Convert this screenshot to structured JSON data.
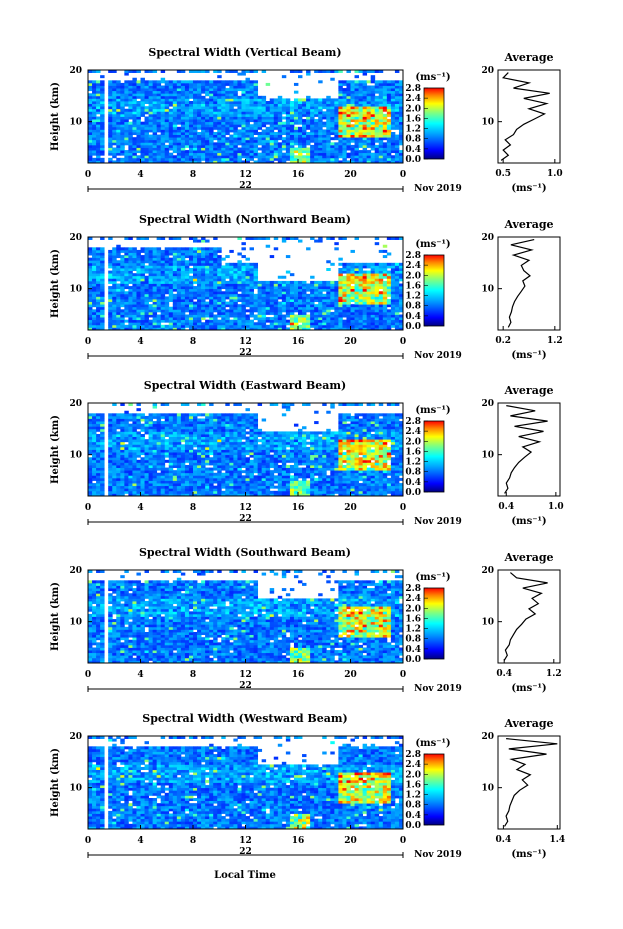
{
  "chart_data": [
    {
      "type": "heatmap",
      "title": "Spectral Width (Vertical Beam)",
      "ylabel": "Height (km)",
      "x_ticks": [
        "0",
        "4",
        "8",
        "12",
        "16",
        "20",
        "0"
      ],
      "y_ticks": [
        "20",
        "10"
      ],
      "date_label": "22",
      "month_label": "Nov 2019",
      "colorbar": {
        "unit": "(ms⁻¹)",
        "ticks": [
          "2.8",
          "2.4",
          "2.0",
          "1.6",
          "1.2",
          "0.8",
          "0.4",
          "0.0"
        ],
        "range": [
          0,
          2.8
        ]
      },
      "xlim": [
        0,
        24
      ],
      "ylim": [
        2,
        20
      ],
      "profile": {
        "title": "Average",
        "xlabel": "(ms⁻¹)",
        "x_ticks": [
          "0.5",
          "1.0"
        ],
        "xlim": [
          0.45,
          1.05
        ],
        "points": [
          [
            0.48,
            2.5
          ],
          [
            0.55,
            3.5
          ],
          [
            0.5,
            4.5
          ],
          [
            0.57,
            5.5
          ],
          [
            0.52,
            6.5
          ],
          [
            0.6,
            7.5
          ],
          [
            0.63,
            8.5
          ],
          [
            0.7,
            9.5
          ],
          [
            0.8,
            10.5
          ],
          [
            0.9,
            11.5
          ],
          [
            0.75,
            12.5
          ],
          [
            0.92,
            13.5
          ],
          [
            0.7,
            14.5
          ],
          [
            0.95,
            15.5
          ],
          [
            0.6,
            16.5
          ],
          [
            0.75,
            17.5
          ],
          [
            0.5,
            18.5
          ],
          [
            0.55,
            19.5
          ]
        ]
      }
    },
    {
      "type": "heatmap",
      "title": "Spectral Width (Northward Beam)",
      "ylabel": "Height (km)",
      "x_ticks": [
        "0",
        "4",
        "8",
        "12",
        "16",
        "20",
        "0"
      ],
      "y_ticks": [
        "20",
        "10"
      ],
      "date_label": "22",
      "month_label": "Nov 2019",
      "colorbar": {
        "unit": "(ms⁻¹)",
        "ticks": [
          "2.8",
          "2.4",
          "2.0",
          "1.6",
          "1.2",
          "0.8",
          "0.4",
          "0.0"
        ],
        "range": [
          0,
          2.8
        ]
      },
      "xlim": [
        0,
        24
      ],
      "ylim": [
        2,
        20
      ],
      "profile": {
        "title": "Average",
        "xlabel": "(ms⁻¹)",
        "x_ticks": [
          "0.2",
          "1.2"
        ],
        "xlim": [
          0.1,
          1.3
        ],
        "points": [
          [
            0.3,
            2.5
          ],
          [
            0.35,
            3.5
          ],
          [
            0.32,
            4.5
          ],
          [
            0.36,
            5.5
          ],
          [
            0.38,
            6.5
          ],
          [
            0.42,
            7.5
          ],
          [
            0.48,
            8.5
          ],
          [
            0.55,
            9.5
          ],
          [
            0.62,
            10.5
          ],
          [
            0.58,
            11.5
          ],
          [
            0.72,
            12.5
          ],
          [
            0.6,
            13.5
          ],
          [
            0.55,
            14.5
          ],
          [
            0.7,
            15.5
          ],
          [
            0.4,
            16.5
          ],
          [
            0.75,
            17.5
          ],
          [
            0.35,
            18.5
          ],
          [
            0.8,
            19.5
          ]
        ]
      }
    },
    {
      "type": "heatmap",
      "title": "Spectral Width (Eastward Beam)",
      "ylabel": "Height (km)",
      "x_ticks": [
        "0",
        "4",
        "8",
        "12",
        "16",
        "20",
        "0"
      ],
      "y_ticks": [
        "20",
        "10"
      ],
      "date_label": "22",
      "month_label": "Nov 2019",
      "colorbar": {
        "unit": "(ms⁻¹)",
        "ticks": [
          "2.8",
          "2.4",
          "2.0",
          "1.6",
          "1.2",
          "0.8",
          "0.4",
          "0.0"
        ],
        "range": [
          0,
          2.8
        ]
      },
      "xlim": [
        0,
        24
      ],
      "ylim": [
        2,
        20
      ],
      "profile": {
        "title": "Average",
        "xlabel": "(ms⁻¹)",
        "x_ticks": [
          "0.4",
          "1.0"
        ],
        "xlim": [
          0.3,
          1.05
        ],
        "points": [
          [
            0.38,
            2.5
          ],
          [
            0.42,
            3.5
          ],
          [
            0.4,
            4.5
          ],
          [
            0.44,
            5.5
          ],
          [
            0.46,
            6.5
          ],
          [
            0.5,
            7.5
          ],
          [
            0.55,
            8.5
          ],
          [
            0.62,
            9.5
          ],
          [
            0.7,
            10.5
          ],
          [
            0.6,
            11.5
          ],
          [
            0.8,
            12.5
          ],
          [
            0.55,
            13.5
          ],
          [
            0.85,
            14.5
          ],
          [
            0.5,
            15.5
          ],
          [
            0.9,
            16.5
          ],
          [
            0.45,
            17.5
          ],
          [
            0.75,
            18.5
          ],
          [
            0.4,
            19.5
          ]
        ]
      }
    },
    {
      "type": "heatmap",
      "title": "Spectral Width (Southward Beam)",
      "ylabel": "Height (km)",
      "x_ticks": [
        "0",
        "4",
        "8",
        "12",
        "16",
        "20",
        "0"
      ],
      "y_ticks": [
        "20",
        "10"
      ],
      "date_label": "22",
      "month_label": "Nov 2019",
      "colorbar": {
        "unit": "(ms⁻¹)",
        "ticks": [
          "2.8",
          "2.4",
          "2.0",
          "1.6",
          "1.2",
          "0.8",
          "0.4",
          "0.0"
        ],
        "range": [
          0,
          2.8
        ]
      },
      "xlim": [
        0,
        24
      ],
      "ylim": [
        2,
        20
      ],
      "profile": {
        "title": "Average",
        "xlabel": "(ms⁻¹)",
        "x_ticks": [
          "0.4",
          "1.2"
        ],
        "xlim": [
          0.3,
          1.3
        ],
        "points": [
          [
            0.4,
            2.5
          ],
          [
            0.45,
            3.5
          ],
          [
            0.42,
            4.5
          ],
          [
            0.48,
            5.5
          ],
          [
            0.5,
            6.5
          ],
          [
            0.55,
            7.5
          ],
          [
            0.6,
            8.5
          ],
          [
            0.68,
            9.5
          ],
          [
            0.75,
            10.5
          ],
          [
            0.9,
            11.5
          ],
          [
            0.8,
            12.5
          ],
          [
            0.95,
            13.5
          ],
          [
            0.85,
            14.5
          ],
          [
            1.0,
            15.5
          ],
          [
            0.7,
            16.5
          ],
          [
            1.1,
            17.5
          ],
          [
            0.6,
            18.5
          ],
          [
            0.5,
            19.5
          ]
        ]
      }
    },
    {
      "type": "heatmap",
      "title": "Spectral Width (Westward Beam)",
      "ylabel": "Height (km)",
      "x_ticks": [
        "0",
        "4",
        "8",
        "12",
        "16",
        "20",
        "0"
      ],
      "y_ticks": [
        "20",
        "10"
      ],
      "date_label": "22",
      "month_label": "Nov 2019",
      "colorbar": {
        "unit": "(ms⁻¹)",
        "ticks": [
          "2.8",
          "2.4",
          "2.0",
          "1.6",
          "1.2",
          "0.8",
          "0.4",
          "0.0"
        ],
        "range": [
          0,
          2.8
        ]
      },
      "xlim": [
        0,
        24
      ],
      "ylim": [
        2,
        20
      ],
      "profile": {
        "title": "Average",
        "xlabel": "(ms⁻¹)",
        "x_ticks": [
          "0.4",
          "1.4"
        ],
        "xlim": [
          0.3,
          1.45
        ],
        "points": [
          [
            0.42,
            2.5
          ],
          [
            0.48,
            3.5
          ],
          [
            0.45,
            4.5
          ],
          [
            0.5,
            5.5
          ],
          [
            0.52,
            6.5
          ],
          [
            0.56,
            7.5
          ],
          [
            0.6,
            8.5
          ],
          [
            0.7,
            9.5
          ],
          [
            0.85,
            10.5
          ],
          [
            0.75,
            11.5
          ],
          [
            0.9,
            12.5
          ],
          [
            0.65,
            13.5
          ],
          [
            0.8,
            14.5
          ],
          [
            0.55,
            15.5
          ],
          [
            1.2,
            16.5
          ],
          [
            0.5,
            17.5
          ],
          [
            1.4,
            18.5
          ],
          [
            0.45,
            19.5
          ]
        ]
      }
    }
  ],
  "xlabel": "Local Time"
}
